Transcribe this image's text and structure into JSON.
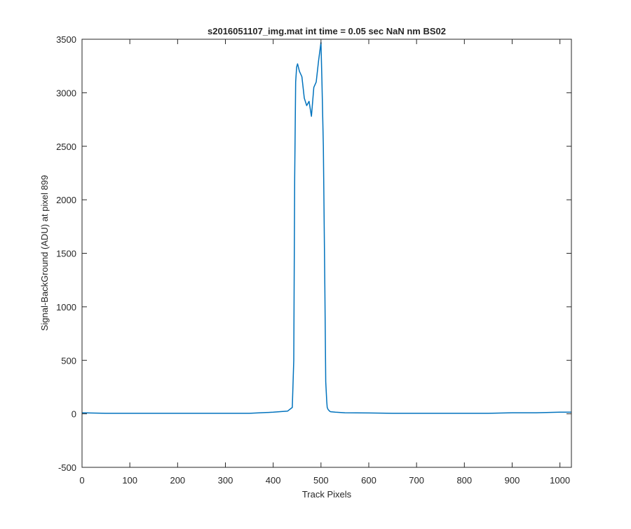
{
  "chart_data": {
    "type": "line",
    "title": "s2016051107_img.mat int time = 0.05 sec  NaN nm BS02",
    "xlabel": "Track Pixels",
    "ylabel": "Signal-BackGround (ADU) at pixel 899",
    "xlim": [
      0,
      1024
    ],
    "ylim": [
      -500,
      3500
    ],
    "xticks": [
      0,
      100,
      200,
      300,
      400,
      500,
      600,
      700,
      800,
      900,
      1000
    ],
    "yticks": [
      -500,
      0,
      500,
      1000,
      1500,
      2000,
      2500,
      3000,
      3500
    ],
    "grid": false,
    "line_color": "#0072bd",
    "series": [
      {
        "x": [
          0,
          50,
          100,
          150,
          200,
          250,
          300,
          350,
          400,
          430,
          440,
          443,
          445,
          447,
          449,
          451,
          455,
          460,
          465,
          470,
          475,
          480,
          485,
          490,
          495,
          500,
          502,
          505,
          508,
          510,
          512,
          513,
          515,
          518,
          520,
          530,
          550,
          600,
          650,
          700,
          750,
          800,
          850,
          900,
          950,
          1000,
          1024
        ],
        "values": [
          10,
          5,
          5,
          5,
          5,
          5,
          5,
          5,
          15,
          25,
          60,
          500,
          2200,
          3100,
          3240,
          3270,
          3200,
          3150,
          2950,
          2880,
          2920,
          2780,
          3050,
          3100,
          3300,
          3470,
          3100,
          2500,
          1200,
          300,
          120,
          60,
          40,
          25,
          20,
          15,
          10,
          8,
          5,
          5,
          5,
          5,
          5,
          10,
          10,
          15,
          15
        ]
      }
    ]
  }
}
